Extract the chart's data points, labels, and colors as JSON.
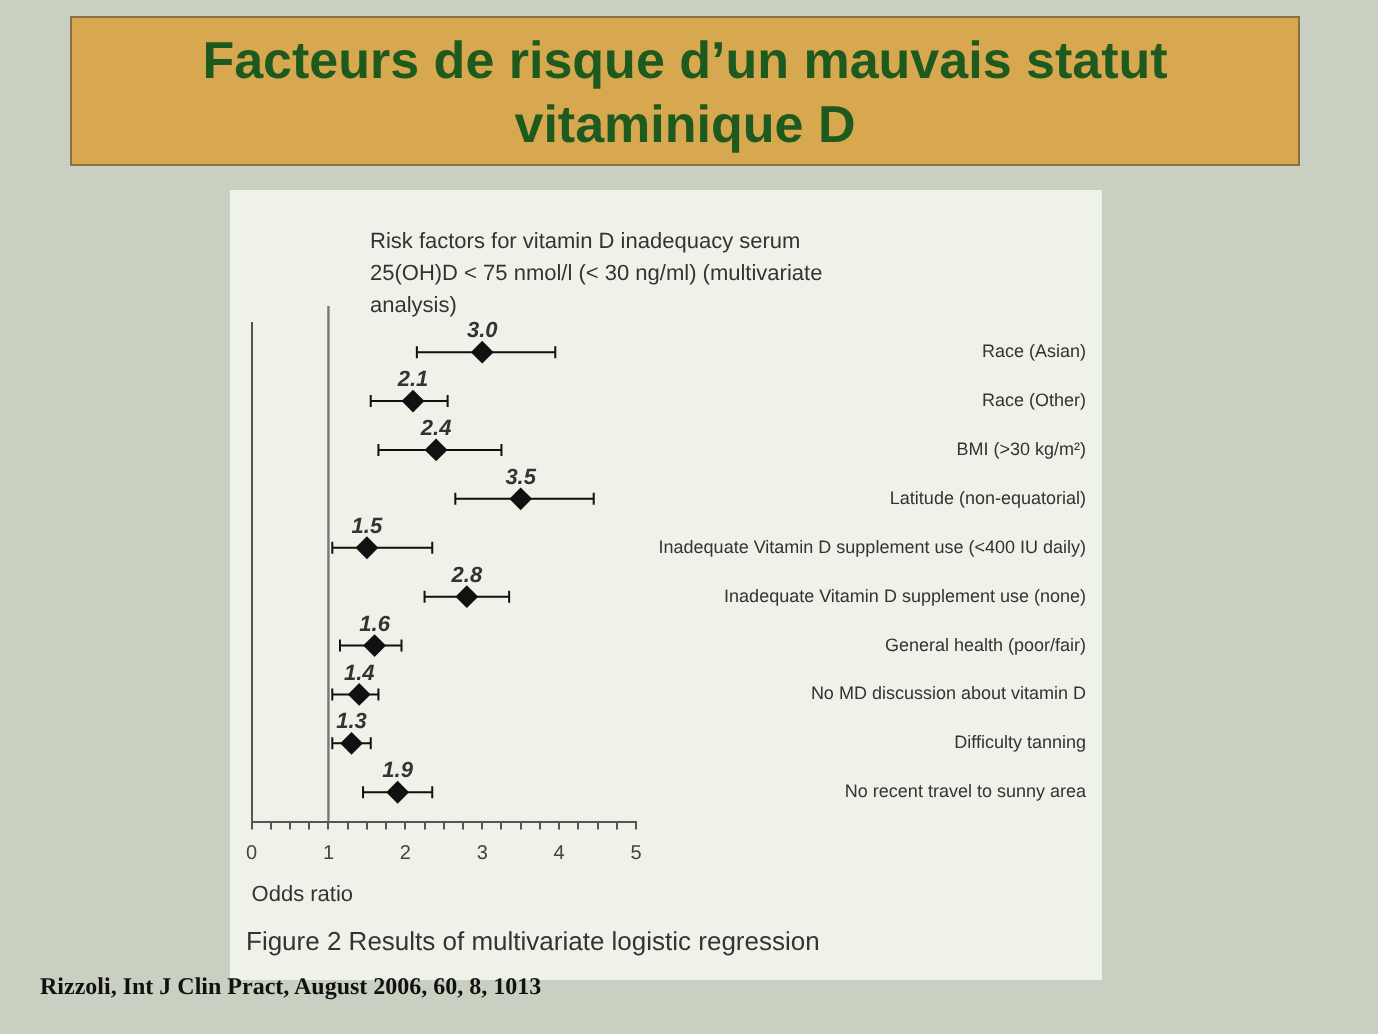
{
  "chart_data": {
    "type": "scatter",
    "orientation": "horizontal",
    "title": "Facteurs de risque d’un mauvais statut vitaminique D",
    "subtitle": "Risk factors for vitamin D inadequacy serum 25(OH)D < 75 nmol/l (< 30 ng/ml) (multivariate analysis)",
    "xlabel": "Odds ratio",
    "categories": [
      "Race (Asian)",
      "Race (Other)",
      "BMI (>30 kg/m²)",
      "Latitude (non-equatorial)",
      "Inadequate Vitamin D supplement use (<400 IU daily)",
      "Inadequate Vitamin D supplement use (none)",
      "General health (poor/fair)",
      "No MD discussion about vitamin D",
      "Difficulty tanning",
      "No recent travel to sunny area"
    ],
    "values": [
      3.0,
      2.1,
      2.4,
      3.5,
      1.5,
      2.8,
      1.6,
      1.4,
      1.3,
      1.9
    ],
    "errors": [
      [
        2.15,
        3.95
      ],
      [
        1.55,
        2.55
      ],
      [
        1.65,
        3.25
      ],
      [
        2.65,
        4.45
      ],
      [
        1.05,
        2.35
      ],
      [
        2.25,
        3.35
      ],
      [
        1.15,
        1.95
      ],
      [
        1.05,
        1.65
      ],
      [
        1.05,
        1.55
      ],
      [
        1.45,
        2.35
      ]
    ],
    "value_labels": [
      "3.0",
      "2.1",
      "2.4",
      "3.5",
      "1.5",
      "2.8",
      "1.6",
      "1.4",
      "1.3",
      "1.9"
    ],
    "color": "#111111",
    "marker": "diamond",
    "xlim": [
      0,
      5
    ],
    "xticks": [
      0,
      {
        "value": 0.25,
        "label": null
      },
      {
        "value": 0.5,
        "label": null
      },
      {
        "value": 0.75,
        "label": null
      },
      1,
      {
        "value": 1.25,
        "label": null
      },
      {
        "value": 1.5,
        "label": null
      },
      {
        "value": 1.75,
        "label": null
      },
      2,
      {
        "value": 2.25,
        "label": null
      },
      {
        "value": 2.5,
        "label": null
      },
      {
        "value": 2.75,
        "label": null
      },
      3,
      {
        "value": 3.25,
        "label": null
      },
      {
        "value": 3.5,
        "label": null
      },
      {
        "value": 3.75,
        "label": null
      },
      4,
      {
        "value": 4.25,
        "label": null
      },
      {
        "value": 4.5,
        "label": null
      },
      {
        "value": 4.75,
        "label": null
      },
      5
    ],
    "ref_lines": [
      {
        "axis": "x",
        "value": 1,
        "color": "#777777"
      }
    ],
    "grid": false,
    "legend": false,
    "annotations": [
      "Figure 2 Results of multivariate logistic regression",
      "Rizzoli, Int J Clin Pract, August 2006, 60, 8, 1013"
    ]
  }
}
